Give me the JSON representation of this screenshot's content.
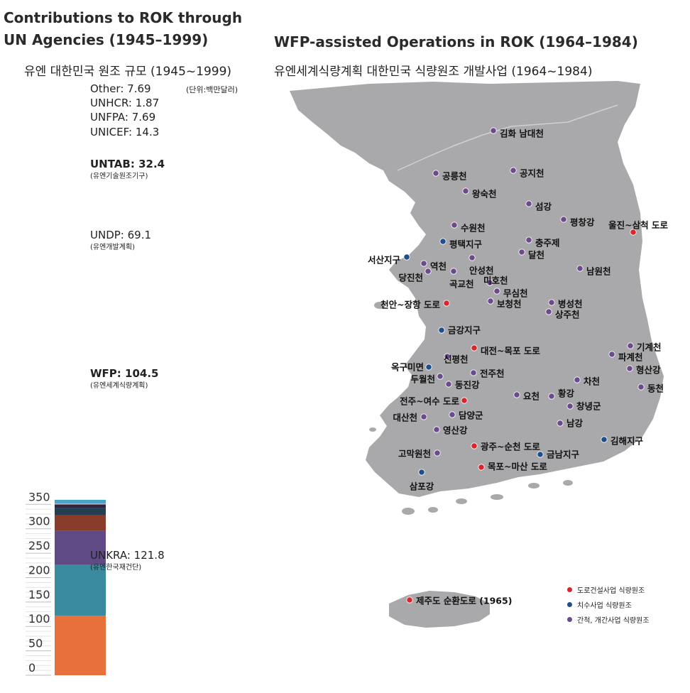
{
  "left": {
    "title_line1": "Contributions to ROK through",
    "title_line2": "UN Agencies (1945–1999)",
    "subtitle": "유엔 대한민국 원조 규모 (1945~1999)",
    "unit": "(단위:백만달러)"
  },
  "right": {
    "title": "WFP-assisted Operations in ROK (1964–1984)",
    "subtitle": "유엔세계식량계획 대한민국 식량원조 개발사업 (1964~1984)"
  },
  "colors": {
    "red": "#d9262b",
    "blue": "#1e4f8c",
    "purple": "#6b4a8e",
    "land": "#a9a8aa"
  },
  "chart_data": {
    "type": "bar",
    "stacked": true,
    "ylim": [
      0,
      350
    ],
    "yticks": [
      0,
      50,
      100,
      150,
      200,
      250,
      300,
      350
    ],
    "series": [
      {
        "name": "UNKRA",
        "value": 121.8,
        "label": "UNKRA: 121.8",
        "sublabel": "(유엔한국재건단)",
        "color": "#e8703c"
      },
      {
        "name": "WFP",
        "value": 104.5,
        "label": "WFP: 104.5",
        "sublabel": "(유엔세계식량계획)",
        "color": "#3a8aa0"
      },
      {
        "name": "UNDP",
        "value": 69.1,
        "label": "UNDP: 69.1",
        "sublabel": "(유엔개발계획)",
        "color": "#5f4a86"
      },
      {
        "name": "UNTAB",
        "value": 32.4,
        "label": "UNTAB: 32.4",
        "sublabel": "(유엔기술원조기구)",
        "color": "#8a3c2a"
      },
      {
        "name": "UNICEF",
        "value": 14.3,
        "label": "UNICEF: 14.3",
        "sublabel": "",
        "color": "#243f52"
      },
      {
        "name": "UNFPA",
        "value": 7.69,
        "label": "UNFPA: 7.69",
        "sublabel": "",
        "color": "#2e2444"
      },
      {
        "name": "UNHCR",
        "value": 1.87,
        "label": "UNHCR: 1.87",
        "sublabel": "",
        "color": "#e6b2a0"
      },
      {
        "name": "Other",
        "value": 7.69,
        "label": "Other: 7.69",
        "sublabel": "",
        "color": "#48a3c6"
      }
    ]
  },
  "map_sites": [
    {
      "name": "김화 남대천",
      "type": "purple"
    },
    {
      "name": "공릉천",
      "type": "purple"
    },
    {
      "name": "공지천",
      "type": "purple"
    },
    {
      "name": "왕숙천",
      "type": "purple"
    },
    {
      "name": "섬강",
      "type": "purple"
    },
    {
      "name": "평창강",
      "type": "purple"
    },
    {
      "name": "울진~삼척 도로",
      "type": "red"
    },
    {
      "name": "수원천",
      "type": "purple"
    },
    {
      "name": "평택지구",
      "type": "blue"
    },
    {
      "name": "충주제",
      "type": "purple"
    },
    {
      "name": "달천",
      "type": "purple"
    },
    {
      "name": "서산지구",
      "type": "blue"
    },
    {
      "name": "역천",
      "type": "purple"
    },
    {
      "name": "안성천",
      "type": "purple"
    },
    {
      "name": "당진천",
      "type": "purple"
    },
    {
      "name": "곡교천",
      "type": "purple"
    },
    {
      "name": "남원천",
      "type": "purple"
    },
    {
      "name": "미호천",
      "type": "purple"
    },
    {
      "name": "무심천",
      "type": "purple"
    },
    {
      "name": "천안~장항 도로",
      "type": "red"
    },
    {
      "name": "보청천",
      "type": "purple"
    },
    {
      "name": "병성천",
      "type": "purple"
    },
    {
      "name": "상주천",
      "type": "purple"
    },
    {
      "name": "금강지구",
      "type": "blue"
    },
    {
      "name": "대전~목포 도로",
      "type": "red"
    },
    {
      "name": "기계천",
      "type": "purple"
    },
    {
      "name": "파계천",
      "type": "purple"
    },
    {
      "name": "신평천",
      "type": "purple"
    },
    {
      "name": "옥구미면",
      "type": "blue"
    },
    {
      "name": "형산강",
      "type": "purple"
    },
    {
      "name": "두월천",
      "type": "purple"
    },
    {
      "name": "전주천",
      "type": "purple"
    },
    {
      "name": "동진강",
      "type": "purple"
    },
    {
      "name": "차천",
      "type": "purple"
    },
    {
      "name": "동천",
      "type": "purple"
    },
    {
      "name": "전주~여수 도로",
      "type": "red"
    },
    {
      "name": "요천",
      "type": "purple"
    },
    {
      "name": "황강",
      "type": "purple"
    },
    {
      "name": "창녕군",
      "type": "purple"
    },
    {
      "name": "대산천",
      "type": "purple"
    },
    {
      "name": "담양군",
      "type": "purple"
    },
    {
      "name": "남강",
      "type": "purple"
    },
    {
      "name": "영산강",
      "type": "purple"
    },
    {
      "name": "김해지구",
      "type": "blue"
    },
    {
      "name": "광주~순천 도로",
      "type": "red"
    },
    {
      "name": "고막원천",
      "type": "purple"
    },
    {
      "name": "금남지구",
      "type": "blue"
    },
    {
      "name": "목포~마산 도로",
      "type": "red"
    },
    {
      "name": "삼포강",
      "type": "blue"
    },
    {
      "name": "제주도 순환도로 (1965)",
      "type": "red"
    }
  ],
  "legend": [
    {
      "label": "도로건설사업 식량원조",
      "type": "red"
    },
    {
      "label": "치수사업 식량원조",
      "type": "blue"
    },
    {
      "label": "간척, 개간사업 식량원조",
      "type": "purple"
    }
  ]
}
